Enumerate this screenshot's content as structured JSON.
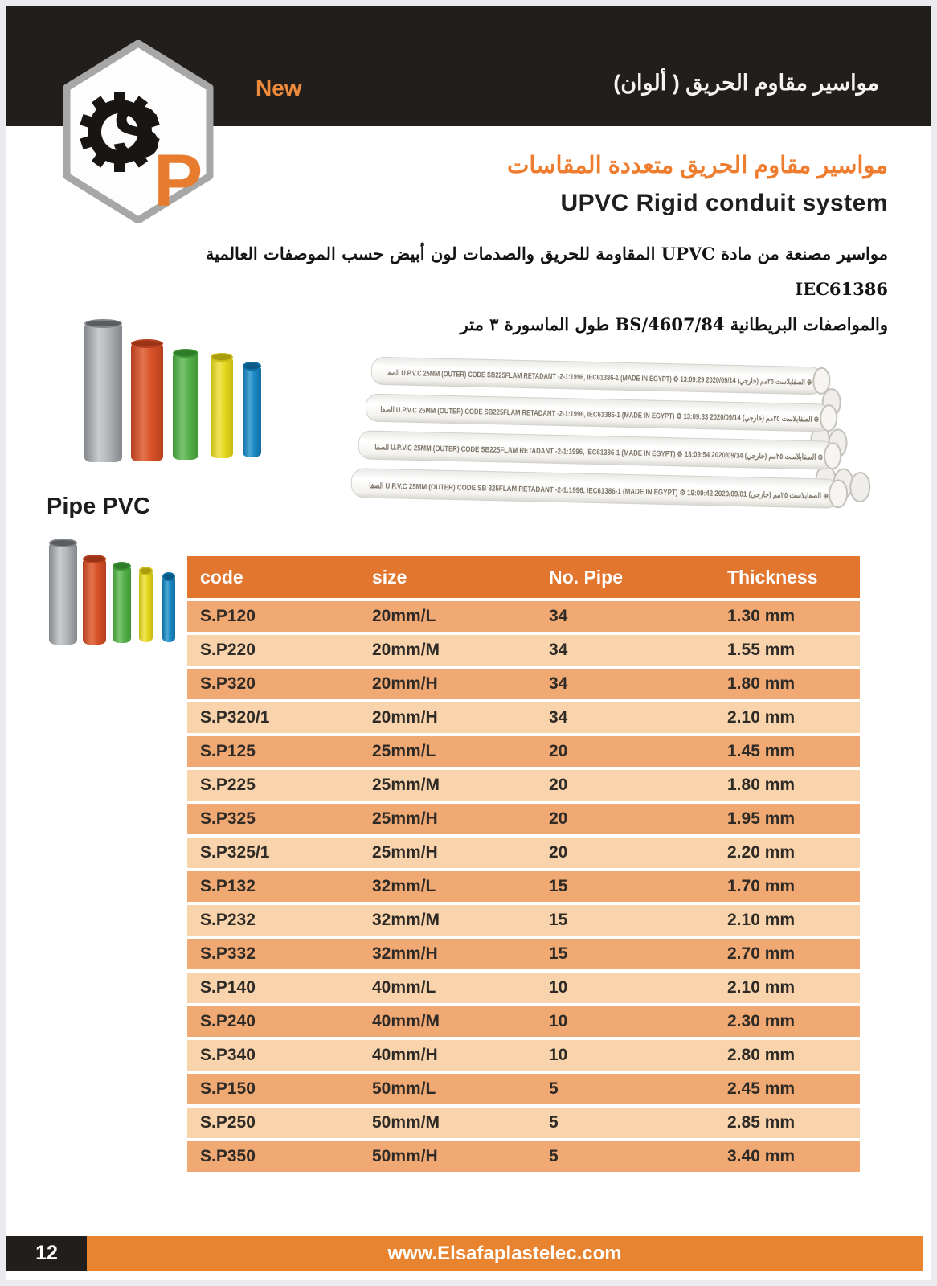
{
  "page": {
    "number": "12",
    "website": "www.Elsafaplastelec.com"
  },
  "header": {
    "badge_new": "New",
    "title_ar": "مواسير مقاوم الحريق ( ألوان)",
    "logo_letters": {
      "s": "S",
      "p": "P"
    }
  },
  "intro": {
    "subtitle_ar": "مواسير مقاوم الحريق متعددة المقاسات",
    "subtitle_en": "UPVC  Rigid conduit system",
    "desc_line1": "مواسير مصنعة من مادة UPVC المقاومة للحريق والصدمات لون أبيض حسب الموصفات العالمية IEC61386",
    "desc_line2": "والمواصفات البريطانية BS/4607/84 طول الماسورة ٣ متر"
  },
  "section": {
    "label": "Pipe PVC"
  },
  "pipe_colors": {
    "gray": "#9fa3a7",
    "red": "#d8532a",
    "green": "#57b14b",
    "yellow": "#e6d81f",
    "blue": "#1b89c4"
  },
  "accent_colors": {
    "header_black": "#211e1b",
    "heading_orange": "#ee7d2f",
    "table_header_orange": "#e2762f",
    "table_row_dark": "#f1a974",
    "table_row_light": "#f8d3ab",
    "footer_orange": "#e8832f"
  },
  "bundle": {
    "lines": [
      {
        "brand": "الصفا",
        "text": "U.P.V.C 25MM (OUTER) CODE SB225FLAM RETADANT -2-1:1996, IEC61386-1 (MADE IN EGYPT)",
        "arabic": "الصفابلاست ٢٥مم (خارجي)",
        "stamp": "2020/09/14 13:09:29"
      },
      {
        "brand": "الصفا",
        "text": "U.P.V.C 25MM (OUTER) CODE SB225FLAM RETADANT -2-1:1996, IEC61386-1 (MADE IN EGYPT)",
        "arabic": "الصفابلاست ٢٥مم (خارجي)",
        "stamp": "2020/09/14 13:09:33"
      },
      {
        "brand": "الصفا",
        "text": "U.P.V.C 25MM (OUTER) CODE SB225FLAM RETADANT -2-1:1996, IEC61386-1 (MADE IN EGYPT)",
        "arabic": "الصفابلاست ٢٥مم (خارجي)",
        "stamp": "2020/09/14 13:09:54"
      },
      {
        "brand": "الصفا",
        "text": "U.P.V.C 25MM (OUTER) CODE SB 325FLAM RETADANT -2-1:1996, IEC61386-1 (MADE IN EGYPT)",
        "arabic": "الصفابلاست ٢٥مم (خارجي)",
        "stamp": "2020/09/01 19:09:42"
      }
    ]
  },
  "table": {
    "headers": [
      "code",
      "size",
      "No. Pipe",
      "Thickness"
    ],
    "rows": [
      [
        "S.P120",
        "20mm/L",
        "34",
        "1.30 mm"
      ],
      [
        "S.P220",
        "20mm/M",
        "34",
        "1.55 mm"
      ],
      [
        "S.P320",
        "20mm/H",
        "34",
        "1.80 mm"
      ],
      [
        "S.P320/1",
        "20mm/H",
        "34",
        "2.10 mm"
      ],
      [
        "S.P125",
        "25mm/L",
        "20",
        "1.45 mm"
      ],
      [
        "S.P225",
        "25mm/M",
        "20",
        "1.80 mm"
      ],
      [
        "S.P325",
        "25mm/H",
        "20",
        "1.95 mm"
      ],
      [
        "S.P325/1",
        "25mm/H",
        "20",
        "2.20 mm"
      ],
      [
        "S.P132",
        "32mm/L",
        "15",
        "1.70 mm"
      ],
      [
        "S.P232",
        "32mm/M",
        "15",
        "2.10 mm"
      ],
      [
        "S.P332",
        "32mm/H",
        "15",
        "2.70 mm"
      ],
      [
        "S.P140",
        "40mm/L",
        "10",
        "2.10 mm"
      ],
      [
        "S.P240",
        "40mm/M",
        "10",
        "2.30 mm"
      ],
      [
        "S.P340",
        "40mm/H",
        "10",
        "2.80 mm"
      ],
      [
        "S.P150",
        "50mm/L",
        "5",
        "2.45 mm"
      ],
      [
        "S.P250",
        "50mm/M",
        "5",
        "2.85 mm"
      ],
      [
        "S.P350",
        "50mm/H",
        "5",
        "3.40 mm"
      ]
    ]
  }
}
